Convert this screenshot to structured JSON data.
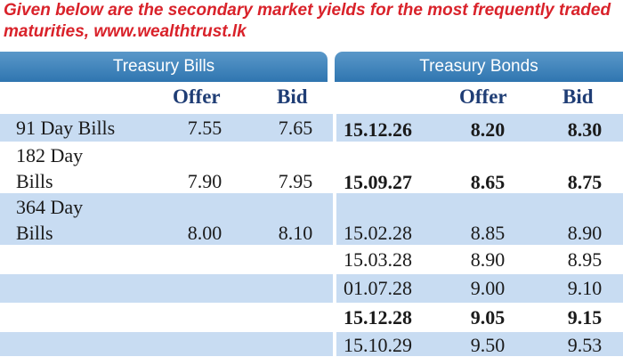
{
  "caption": "Given below are the secondary market yields for the most frequently traded maturities, www.wealthtrust.lk",
  "headers": {
    "bills": "Treasury Bills",
    "bonds": "Treasury Bonds"
  },
  "columns": {
    "bills_offer": "Offer",
    "bills_bid": "Bid",
    "bonds_offer": "Offer",
    "bonds_bid": "Bid"
  },
  "bills": [
    {
      "name": "91 Day Bills",
      "offer": "7.55",
      "bid": "7.65"
    },
    {
      "name_line1": "182 Day",
      "name_line2": "Bills",
      "offer": "7.90",
      "bid": "7.95"
    },
    {
      "name_line1": "364 Day",
      "name_line2": "Bills",
      "offer": "8.00",
      "bid": "8.10"
    }
  ],
  "bonds": [
    {
      "maturity": "15.12.26",
      "offer": "8.20",
      "bid": "8.30"
    },
    {
      "maturity": "15.09.27",
      "offer": "8.65",
      "bid": "8.75"
    },
    {
      "maturity": "15.02.28",
      "offer": "8.85",
      "bid": "8.90"
    },
    {
      "maturity": "15.03.28",
      "offer": "8.90",
      "bid": "8.95"
    },
    {
      "maturity": "01.07.28",
      "offer": "9.00",
      "bid": "9.10"
    },
    {
      "maturity": "15.12.28",
      "offer": "9.05",
      "bid": "9.15"
    },
    {
      "maturity": "15.10.29",
      "offer": "9.50",
      "bid": "9.53"
    }
  ],
  "colors": {
    "caption": "#d9222a",
    "header_bg": "#2f75b0",
    "shaded_row": "#c8dcf2",
    "column_head": "#1f3d75"
  }
}
